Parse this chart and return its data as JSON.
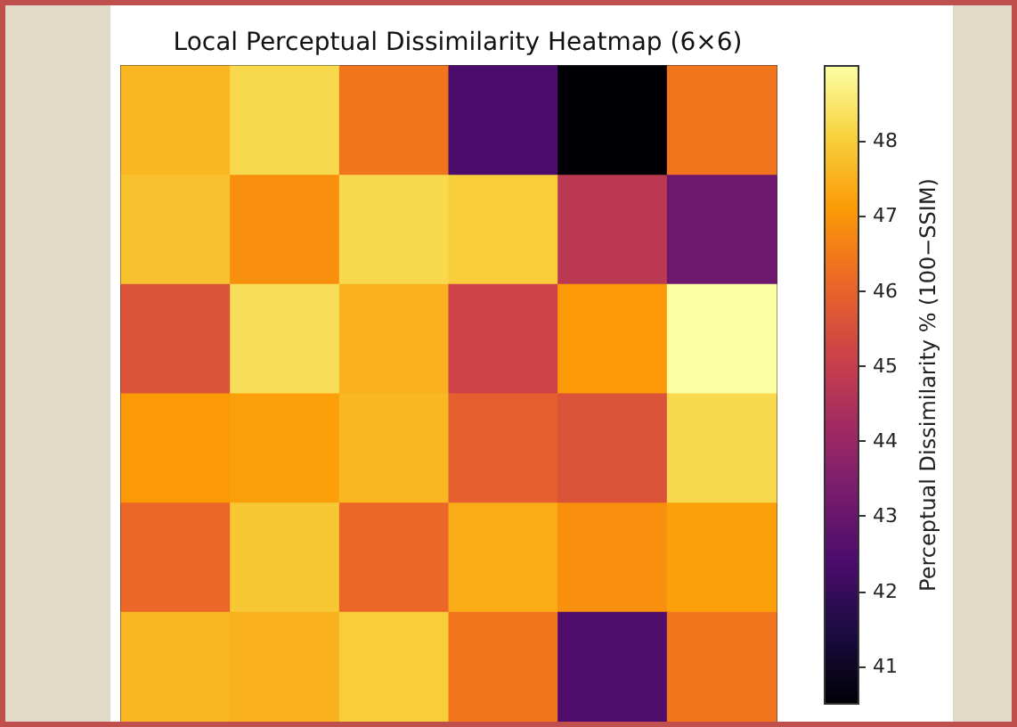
{
  "chart_data": {
    "type": "heatmap",
    "title": "Local Perceptual Dissimilarity Heatmap (6×6)",
    "clabel": "Perceptual Dissimilarity % (100−SSIM)",
    "categories": [
      null,
      null,
      null,
      null,
      null,
      null
    ],
    "y_categories": [
      null,
      null,
      null,
      null,
      null,
      null
    ],
    "cells": [
      [
        47.6,
        48.2,
        46.4,
        42.4,
        40.5,
        46.4
      ],
      [
        47.8,
        46.9,
        48.2,
        48.0,
        44.8,
        43.1
      ],
      [
        45.6,
        48.3,
        47.5,
        45.2,
        47.1,
        49.0
      ],
      [
        47.1,
        47.2,
        47.6,
        45.9,
        45.6,
        48.2
      ],
      [
        46.1,
        47.9,
        46.1,
        47.4,
        46.9,
        47.2
      ],
      [
        47.6,
        47.5,
        48.0,
        46.4,
        42.5,
        46.4
      ]
    ],
    "clim": [
      40.5,
      49.0
    ],
    "cticks": [
      41,
      42,
      43,
      44,
      45,
      46,
      47,
      48
    ]
  }
}
